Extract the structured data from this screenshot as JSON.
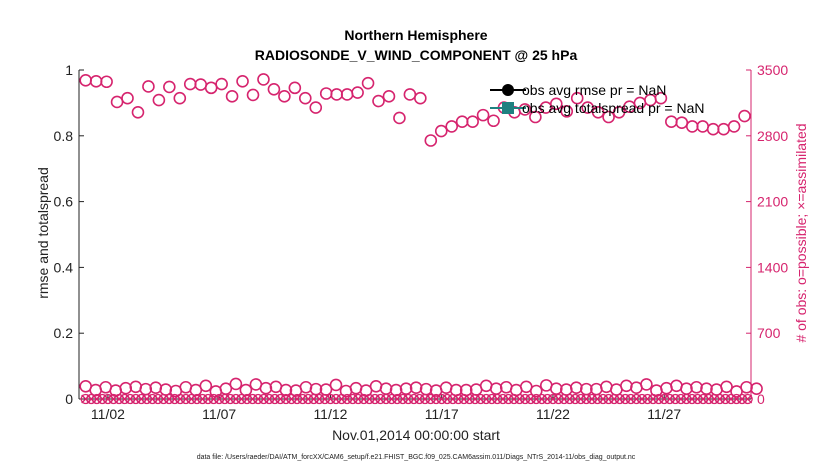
{
  "chart_data": {
    "type": "scatter",
    "title": "Northern Hemisphere",
    "subtitle": "RADIOSONDE_V_WIND_COMPONENT @ 25 hPa",
    "xlabel": "Nov.01,2014 00:00:00 start",
    "ylabel": "rmse and totalspread",
    "y2label": "# of obs: o=possible; ×=assimilated",
    "footer": "data file: /Users/raeder/DAI/ATM_forcXX/CAM6_setup/f.e21.FHIST_BGC.f09_025.CAM6assim.011/Diags_NTrS_2014-11/obs_diag_output.nc",
    "x_range": [
      0.7,
      30.9
    ],
    "xticks": [
      2,
      7,
      12,
      17,
      22,
      27
    ],
    "xtick_labels": [
      "11/02",
      "11/07",
      "11/12",
      "11/17",
      "11/22",
      "11/27"
    ],
    "ylim": [
      0,
      1
    ],
    "yticks": [
      0,
      0.2,
      0.4,
      0.6,
      0.8,
      1
    ],
    "ytick_labels": [
      "0",
      "0.2",
      "0.4",
      "0.6",
      "0.8",
      "1"
    ],
    "y2lim": [
      0,
      3500
    ],
    "y2ticks": [
      0,
      700,
      1400,
      2100,
      2800,
      3500
    ],
    "y2tick_labels": [
      "0",
      "700",
      "1400",
      "2100",
      "2800",
      "3500"
    ],
    "legend": [
      {
        "label": "obs avg rmse pr = NaN",
        "color": "#000000",
        "marker": "circle"
      },
      {
        "label": "obs avg totalspread pr = NaN",
        "color": "#1f8080",
        "marker": "square"
      }
    ],
    "colors": {
      "obs": "#d6246e",
      "axis": "#222222",
      "rmse": "#000000",
      "spread": "#1f8080"
    },
    "time_step_days": 0.25,
    "possible_high": [
      3390,
      3380,
      3375,
      3160,
      3200,
      3050,
      3325,
      3180,
      3320,
      3200,
      3350,
      3345,
      3310,
      3350,
      3220,
      3380,
      3235,
      3400,
      3295,
      3220,
      3310,
      3200,
      3100,
      3250,
      3240,
      3240,
      3260,
      3360,
      3170,
      3220,
      2990,
      3240,
      3200,
      2750,
      2850,
      2900,
      2950,
      2950,
      3020,
      2960,
      3100,
      3050,
      3080,
      3000,
      3100,
      3140,
      3060,
      3200,
      3100,
      3050,
      3000,
      3050,
      3110,
      3150,
      3180,
      3200,
      2950,
      2940,
      2900,
      2900,
      2870,
      2870,
      2900,
      3010
    ],
    "possible_low": [
      135,
      95,
      125,
      90,
      115,
      130,
      105,
      120,
      100,
      85,
      125,
      95,
      140,
      80,
      110,
      160,
      95,
      155,
      115,
      130,
      95,
      90,
      125,
      105,
      100,
      150,
      85,
      115,
      90,
      135,
      110,
      95,
      110,
      120,
      105,
      90,
      120,
      95,
      95,
      100,
      140,
      110,
      125,
      95,
      130,
      85,
      145,
      110,
      100,
      120,
      105,
      105,
      130,
      100,
      140,
      120,
      155,
      90,
      115,
      140,
      110,
      125,
      110,
      100,
      130,
      80,
      125,
      110
    ]
  }
}
